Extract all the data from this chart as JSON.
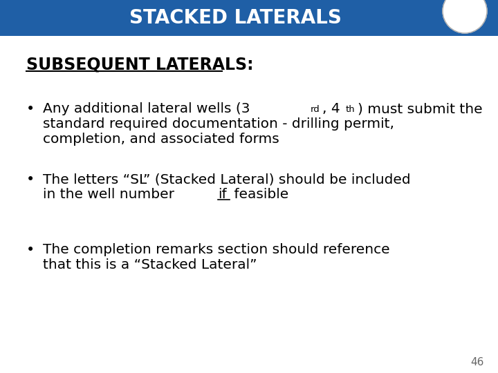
{
  "title": "STACKED LATERALS",
  "title_bg_color": "#1F5FA6",
  "title_text_color": "#FFFFFF",
  "slide_bg_color": "#FFFFFF",
  "heading": "SUBSEQUENT LATERALS:",
  "heading_color": "#000000",
  "bullet1_line1": "Any additional lateral wells (3",
  "bullet1_sup1": "rd",
  "bullet1_mid": ", 4",
  "bullet1_sup2": "th",
  "bullet1_end": ") must submit the",
  "bullet1_line2": "standard required documentation - drilling permit,",
  "bullet1_line3": "completion, and associated forms",
  "bullet2_line1": "The letters “SL” (Stacked Lateral) should be included",
  "bullet2_line2_before": "in the well number ",
  "bullet2_line2_if": "if",
  "bullet2_line2_after": " feasible",
  "bullet3_line1": "The completion remarks section should reference",
  "bullet3_line2": "that this is a “Stacked Lateral”",
  "page_number": "46",
  "font_family": "DejaVu Sans"
}
